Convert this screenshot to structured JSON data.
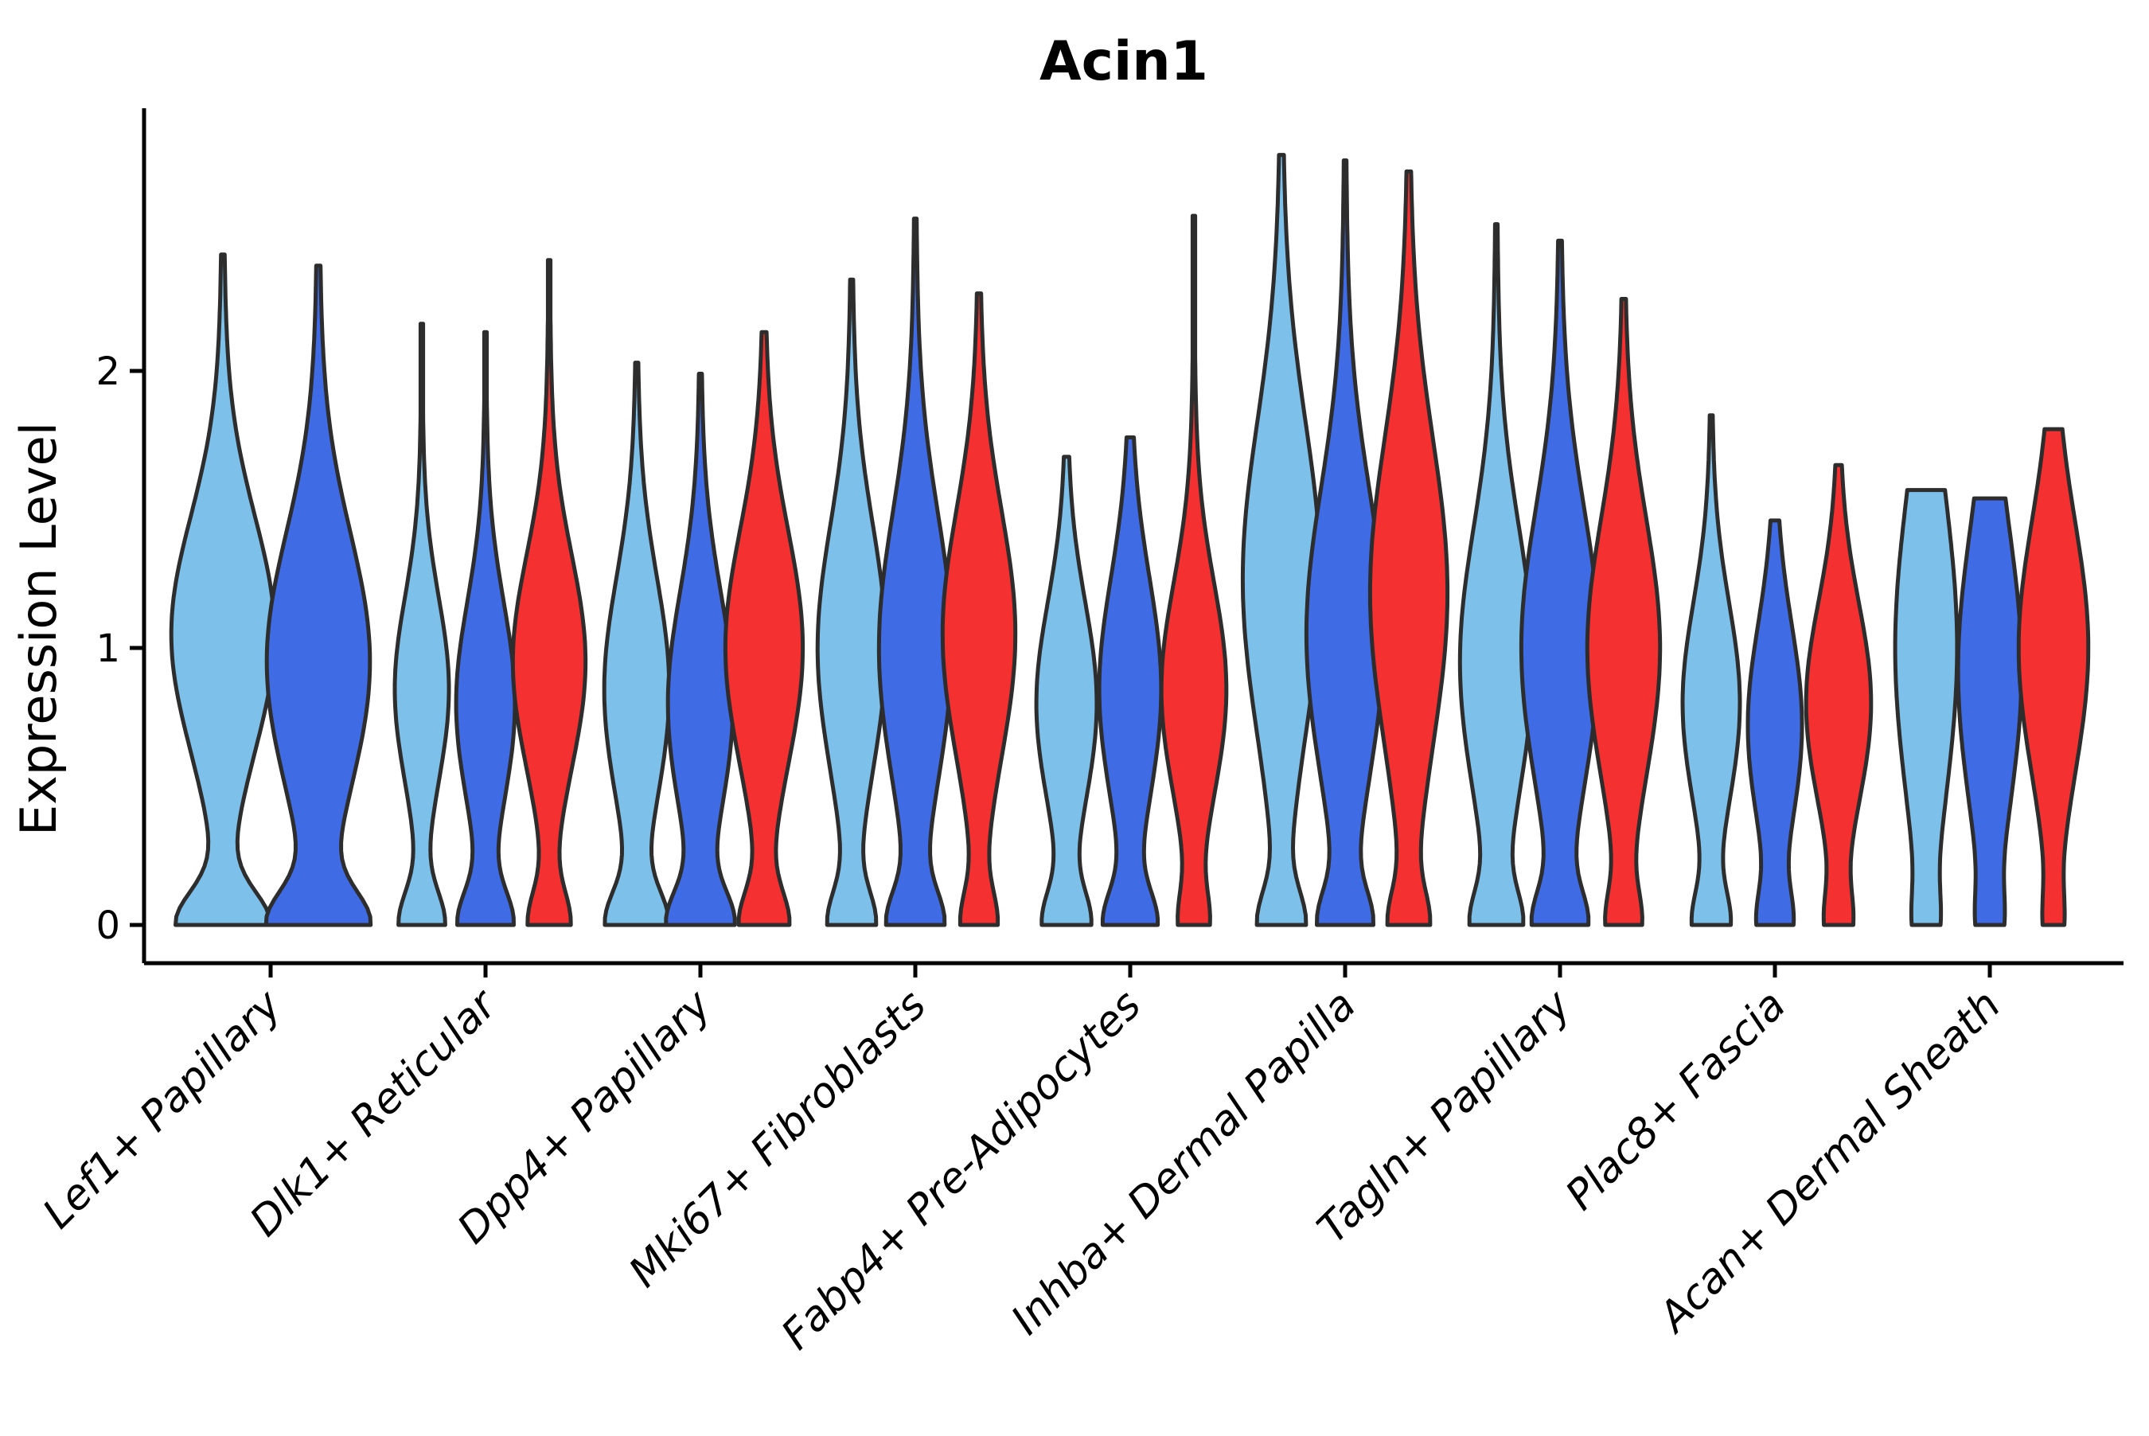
{
  "figure": {
    "background": "#ffffff"
  },
  "chart_data": {
    "type": "violin",
    "title": "Acin1",
    "ylabel": "Expression Level",
    "xlabel": "",
    "yticks": [
      0,
      1,
      2
    ],
    "ylim": [
      -0.14,
      2.95
    ],
    "grid": false,
    "legend": "none",
    "axis_color": "#000000",
    "outline_color": "#2d2d2d",
    "categories": [
      "Lef1+ Papillary",
      "Dlk1+ Reticular",
      "Dpp4+ Papillary",
      "Mki67+ Fibroblasts",
      "Fabp4+ Pre-Adipocytes",
      "Inhba+ Dermal Papilla",
      "Tagln+ Papillary",
      "Plac8+ Fascia",
      "Acan+ Dermal Sheath"
    ],
    "series": [
      {
        "name": "split-1",
        "color": "#7DC1EB"
      },
      {
        "name": "split-2",
        "color": "#3F6BE5"
      },
      {
        "name": "split-3",
        "color": "#F53030"
      }
    ],
    "violins": [
      {
        "category": 0,
        "series": 0,
        "max": 2.42,
        "mode": 1.05,
        "sigma": 0.42,
        "width": 1.0,
        "base": 0.9,
        "flat_top": false,
        "stem": false
      },
      {
        "category": 0,
        "series": 1,
        "max": 2.38,
        "mode": 0.95,
        "sigma": 0.46,
        "width": 1.0,
        "base": 0.92,
        "flat_top": false,
        "stem": false
      },
      {
        "category": 1,
        "series": 0,
        "max": 2.17,
        "mode": 0.85,
        "sigma": 0.33,
        "width": 0.7,
        "base": 0.85,
        "flat_top": false,
        "stem": false
      },
      {
        "category": 1,
        "series": 1,
        "max": 2.14,
        "mode": 0.8,
        "sigma": 0.36,
        "width": 0.76,
        "base": 0.9,
        "flat_top": false,
        "stem": false
      },
      {
        "category": 1,
        "series": 2,
        "max": 2.4,
        "mode": 0.95,
        "sigma": 0.38,
        "width": 0.94,
        "base": 0.55,
        "flat_top": false,
        "stem": false
      },
      {
        "category": 2,
        "series": 0,
        "max": 2.03,
        "mode": 0.85,
        "sigma": 0.4,
        "width": 0.84,
        "base": 0.9,
        "flat_top": false,
        "stem": false
      },
      {
        "category": 2,
        "series": 1,
        "max": 1.99,
        "mode": 0.8,
        "sigma": 0.4,
        "width": 0.84,
        "base": 0.95,
        "flat_top": false,
        "stem": false
      },
      {
        "category": 2,
        "series": 2,
        "max": 2.14,
        "mode": 1.0,
        "sigma": 0.42,
        "width": 1.0,
        "base": 0.6,
        "flat_top": false,
        "stem": false
      },
      {
        "category": 3,
        "series": 0,
        "max": 2.33,
        "mode": 1.0,
        "sigma": 0.44,
        "width": 0.88,
        "base": 0.65,
        "flat_top": false,
        "stem": false
      },
      {
        "category": 3,
        "series": 1,
        "max": 2.55,
        "mode": 1.0,
        "sigma": 0.48,
        "width": 0.94,
        "base": 0.7,
        "flat_top": false,
        "stem": false
      },
      {
        "category": 3,
        "series": 2,
        "max": 2.28,
        "mode": 1.05,
        "sigma": 0.44,
        "width": 0.94,
        "base": 0.45,
        "flat_top": false,
        "stem": false
      },
      {
        "category": 4,
        "series": 0,
        "max": 1.69,
        "mode": 0.8,
        "sigma": 0.36,
        "width": 0.78,
        "base": 0.75,
        "flat_top": false,
        "stem": false
      },
      {
        "category": 4,
        "series": 1,
        "max": 1.76,
        "mode": 0.85,
        "sigma": 0.4,
        "width": 0.8,
        "base": 0.8,
        "flat_top": false,
        "stem": false
      },
      {
        "category": 4,
        "series": 2,
        "max": 2.56,
        "mode": 0.85,
        "sigma": 0.38,
        "width": 0.84,
        "base": 0.4,
        "flat_top": false,
        "stem": false
      },
      {
        "category": 5,
        "series": 0,
        "max": 2.78,
        "mode": 1.25,
        "sigma": 0.56,
        "width": 1.0,
        "base": 0.55,
        "flat_top": false,
        "stem": false
      },
      {
        "category": 5,
        "series": 1,
        "max": 2.76,
        "mode": 1.05,
        "sigma": 0.52,
        "width": 1.0,
        "base": 0.6,
        "flat_top": false,
        "stem": false
      },
      {
        "category": 5,
        "series": 2,
        "max": 2.72,
        "mode": 1.2,
        "sigma": 0.55,
        "width": 1.0,
        "base": 0.45,
        "flat_top": false,
        "stem": false
      },
      {
        "category": 6,
        "series": 0,
        "max": 2.53,
        "mode": 0.95,
        "sigma": 0.48,
        "width": 0.94,
        "base": 0.6,
        "flat_top": false,
        "stem": false
      },
      {
        "category": 6,
        "series": 1,
        "max": 2.47,
        "mode": 1.0,
        "sigma": 0.5,
        "width": 1.0,
        "base": 0.6,
        "flat_top": false,
        "stem": false
      },
      {
        "category": 6,
        "series": 2,
        "max": 2.26,
        "mode": 1.0,
        "sigma": 0.46,
        "width": 0.94,
        "base": 0.4,
        "flat_top": false,
        "stem": false
      },
      {
        "category": 7,
        "series": 0,
        "max": 1.84,
        "mode": 0.8,
        "sigma": 0.36,
        "width": 0.74,
        "base": 0.6,
        "flat_top": false,
        "stem": false
      },
      {
        "category": 7,
        "series": 1,
        "max": 1.46,
        "mode": 0.72,
        "sigma": 0.36,
        "width": 0.7,
        "base": 0.55,
        "flat_top": false,
        "stem": false
      },
      {
        "category": 7,
        "series": 2,
        "max": 1.66,
        "mode": 0.8,
        "sigma": 0.36,
        "width": 0.84,
        "base": 0.35,
        "flat_top": false,
        "stem": false
      },
      {
        "category": 8,
        "series": 0,
        "max": 1.57,
        "mode": 1.0,
        "sigma": 0.55,
        "width": 0.8,
        "base": 0.25,
        "flat_top": true,
        "stem": true
      },
      {
        "category": 8,
        "series": 1,
        "max": 1.54,
        "mode": 0.92,
        "sigma": 0.5,
        "width": 0.82,
        "base": 0.25,
        "flat_top": true,
        "stem": true
      },
      {
        "category": 8,
        "series": 2,
        "max": 1.79,
        "mode": 1.0,
        "sigma": 0.45,
        "width": 0.9,
        "base": 0.2,
        "flat_top": false,
        "stem": true
      }
    ]
  }
}
